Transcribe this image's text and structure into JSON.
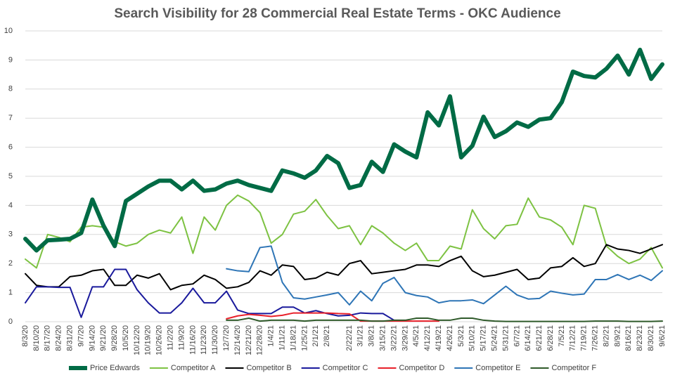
{
  "chart_data": {
    "type": "line",
    "title": "Search Visibility for 28 Commercial Real Estate Terms - OKC Audience",
    "categories": [
      "8/3/20",
      "8/10/20",
      "8/17/20",
      "8/24/20",
      "8/31/20",
      "9/7/20",
      "9/14/20",
      "9/21/20",
      "9/28/20",
      "10/5/20",
      "10/12/20",
      "10/19/20",
      "10/26/20",
      "11/2/20",
      "11/9/20",
      "11/16/20",
      "11/23/20",
      "11/30/20",
      "12/7/20",
      "12/14/20",
      "12/21/20",
      "12/28/20",
      "1/4/21",
      "1/11/21",
      "1/18/21",
      "1/25/21",
      "2/1/21",
      "2/8/21",
      null,
      "2/22/21",
      "3/1/21",
      "3/8/21",
      "3/15/21",
      "3/22/21",
      "3/29/21",
      "4/5/21",
      "4/12/21",
      "4/19/21",
      "4/26/21",
      "5/3/21",
      "5/10/21",
      "5/17/21",
      "5/24/21",
      "5/31/21",
      "6/7/21",
      "6/14/21",
      "6/21/21",
      "6/28/21",
      "7/5/21",
      "7/12/21",
      "7/19/21",
      "7/26/21",
      "8/2/21",
      "8/9/21",
      "8/16/21",
      "8/23/21",
      "8/30/21",
      "9/6/21"
    ],
    "ylim": [
      0,
      10
    ],
    "yticks": [
      0,
      1,
      2,
      3,
      4,
      5,
      6,
      7,
      8,
      9,
      10
    ],
    "grid": true,
    "legend": "bottom",
    "series": [
      {
        "name": "Price Edwards",
        "color": "#006b45",
        "width": 6,
        "values": [
          2.85,
          2.45,
          2.8,
          2.82,
          2.85,
          3.05,
          4.2,
          3.3,
          2.6,
          4.15,
          4.4,
          4.65,
          4.85,
          4.85,
          4.55,
          4.85,
          4.5,
          4.55,
          4.75,
          4.85,
          4.7,
          4.6,
          4.5,
          5.2,
          5.1,
          4.95,
          5.2,
          5.7,
          5.45,
          4.6,
          4.7,
          5.5,
          5.15,
          6.1,
          5.85,
          5.65,
          7.2,
          6.75,
          7.75,
          5.65,
          6.05,
          7.05,
          6.35,
          6.55,
          6.85,
          6.7,
          6.95,
          7.0,
          7.55,
          8.6,
          8.45,
          8.4,
          8.7,
          9.15,
          8.5,
          9.35,
          8.35,
          8.85
        ]
      },
      {
        "name": "Competitor A",
        "color": "#7dc242",
        "width": 2,
        "values": [
          2.15,
          1.85,
          3.0,
          2.9,
          2.75,
          3.25,
          3.3,
          3.25,
          2.75,
          2.6,
          2.7,
          3.0,
          3.15,
          3.05,
          3.6,
          2.35,
          3.6,
          3.15,
          4.0,
          4.35,
          4.15,
          3.75,
          2.7,
          3.0,
          3.7,
          3.8,
          4.2,
          3.65,
          3.2,
          3.3,
          2.65,
          3.3,
          3.05,
          2.7,
          2.45,
          2.7,
          2.1,
          2.1,
          2.6,
          2.5,
          3.85,
          3.2,
          2.85,
          3.3,
          3.35,
          4.25,
          3.6,
          3.5,
          3.25,
          2.65,
          4.0,
          3.9,
          2.6,
          2.25,
          2.0,
          2.15,
          2.55,
          1.85
        ]
      },
      {
        "name": "Competitor B",
        "color": "#000000",
        "width": 2,
        "values": [
          1.65,
          1.25,
          1.2,
          1.2,
          1.55,
          1.6,
          1.75,
          1.8,
          1.25,
          1.25,
          1.6,
          1.5,
          1.65,
          1.1,
          1.25,
          1.3,
          1.6,
          1.45,
          1.15,
          1.2,
          1.35,
          1.75,
          1.6,
          1.95,
          1.9,
          1.45,
          1.5,
          1.7,
          1.6,
          2.0,
          2.1,
          1.65,
          1.7,
          1.75,
          1.8,
          1.95,
          1.95,
          1.9,
          2.1,
          2.25,
          1.75,
          1.55,
          1.6,
          1.7,
          1.8,
          1.45,
          1.5,
          1.85,
          1.9,
          2.2,
          1.9,
          2.0,
          2.65,
          2.5,
          2.45,
          2.35,
          2.5,
          2.65
        ]
      },
      {
        "name": "Competitor C",
        "color": "#1a1a9c",
        "width": 2,
        "values": [
          0.65,
          1.2,
          1.2,
          1.18,
          1.18,
          0.15,
          1.2,
          1.2,
          1.8,
          1.8,
          1.1,
          0.65,
          0.3,
          0.3,
          0.65,
          1.15,
          0.65,
          0.65,
          1.05,
          0.4,
          0.28,
          0.28,
          0.28,
          0.5,
          0.5,
          0.3,
          0.38,
          0.28,
          0.2,
          0.22,
          0.3,
          0.28,
          0.28,
          0.05,
          null,
          null,
          null,
          null,
          null,
          null,
          null,
          null,
          null,
          null,
          null,
          null,
          null,
          null,
          null,
          null,
          null,
          null,
          null,
          null,
          null,
          null,
          null,
          null
        ]
      },
      {
        "name": "Competitor D",
        "color": "#e8202a",
        "width": 2,
        "values": [
          null,
          null,
          null,
          null,
          null,
          null,
          null,
          null,
          null,
          null,
          null,
          null,
          null,
          null,
          null,
          null,
          null,
          null,
          0.1,
          0.2,
          0.25,
          0.22,
          0.18,
          0.22,
          0.3,
          0.3,
          0.3,
          0.3,
          0.28,
          0.27,
          0.02,
          0.02,
          0.02,
          0.02,
          0.02,
          0.02,
          0.02,
          0.02,
          null,
          null,
          null,
          null,
          null,
          null,
          null,
          null,
          null,
          null,
          null,
          null,
          null,
          null,
          null,
          null,
          null,
          null,
          null,
          null
        ]
      },
      {
        "name": "Competitor E",
        "color": "#2e75b6",
        "width": 2,
        "values": [
          null,
          null,
          null,
          null,
          null,
          null,
          null,
          null,
          null,
          null,
          null,
          null,
          null,
          null,
          null,
          null,
          null,
          null,
          1.82,
          1.75,
          1.72,
          2.55,
          2.6,
          1.35,
          0.82,
          0.78,
          0.85,
          0.92,
          1.0,
          0.58,
          1.05,
          0.72,
          1.32,
          1.52,
          1.0,
          0.9,
          0.85,
          0.65,
          0.72,
          0.72,
          0.75,
          0.62,
          0.92,
          1.22,
          0.92,
          0.78,
          0.8,
          1.05,
          0.98,
          0.92,
          0.95,
          1.45,
          1.45,
          1.62,
          1.45,
          1.6,
          1.42,
          1.75
        ]
      },
      {
        "name": "Competitor F",
        "color": "#2f5a2a",
        "width": 2,
        "values": [
          null,
          null,
          null,
          null,
          null,
          null,
          null,
          null,
          null,
          null,
          null,
          null,
          null,
          null,
          null,
          null,
          null,
          null,
          0.05,
          0.05,
          0.12,
          0.02,
          0.05,
          0.05,
          0.05,
          0.02,
          0.05,
          0.05,
          0.05,
          0.05,
          0.05,
          0.02,
          0.02,
          0.05,
          0.05,
          0.12,
          0.12,
          0.05,
          0.05,
          0.12,
          0.12,
          0.05,
          0.02,
          0.01,
          0.01,
          0.01,
          0.01,
          0.01,
          0.01,
          0.01,
          0.01,
          0.02,
          0.02,
          0.02,
          0.01,
          0.01,
          0.01,
          0.02
        ]
      }
    ]
  }
}
